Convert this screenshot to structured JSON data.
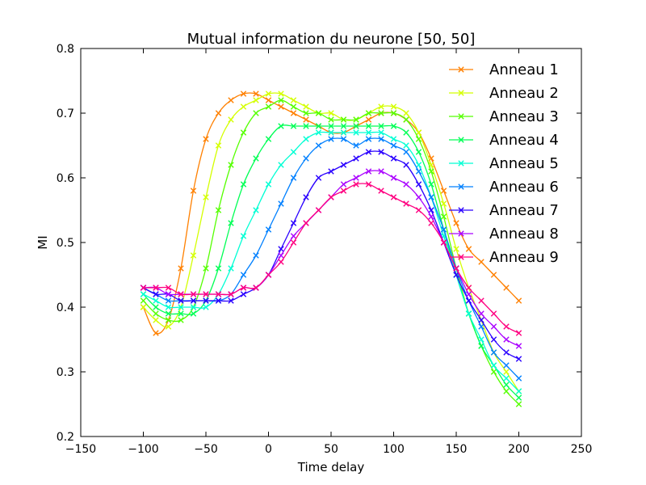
{
  "chart_data": {
    "type": "line",
    "title": "Mutual information du neurone [50, 50]",
    "xlabel": "Time delay",
    "ylabel": "MI",
    "xlim": [
      -150,
      250
    ],
    "ylim": [
      0.2,
      0.8
    ],
    "xticks": [
      -150,
      -100,
      -50,
      0,
      50,
      100,
      150,
      200,
      250
    ],
    "yticks": [
      0.2,
      0.3,
      0.4,
      0.5,
      0.6,
      0.7,
      0.8
    ],
    "xtick_labels": [
      "−150",
      "−100",
      "−50",
      "0",
      "50",
      "100",
      "150",
      "200",
      "250"
    ],
    "ytick_labels": [
      "0.2",
      "0.3",
      "0.4",
      "0.5",
      "0.6",
      "0.7",
      "0.8"
    ],
    "grid": false,
    "legend_position": "top-right",
    "marker": "x",
    "series": [
      {
        "name": "Anneau 1",
        "color": "#ff8000",
        "x": [
          -100,
          -90,
          -80,
          -70,
          -60,
          -50,
          -40,
          -30,
          -20,
          -10,
          0,
          10,
          20,
          30,
          40,
          50,
          60,
          70,
          80,
          90,
          100,
          110,
          120,
          130,
          140,
          150,
          160,
          170,
          180,
          190,
          200
        ],
        "y": [
          0.4,
          0.36,
          0.38,
          0.46,
          0.58,
          0.66,
          0.7,
          0.72,
          0.73,
          0.73,
          0.72,
          0.71,
          0.7,
          0.69,
          0.68,
          0.67,
          0.67,
          0.68,
          0.69,
          0.7,
          0.7,
          0.69,
          0.67,
          0.63,
          0.58,
          0.53,
          0.49,
          0.47,
          0.45,
          0.43,
          0.41
        ]
      },
      {
        "name": "Anneau 2",
        "color": "#d4ff00",
        "x": [
          -100,
          -90,
          -80,
          -70,
          -60,
          -50,
          -40,
          -30,
          -20,
          -10,
          0,
          10,
          20,
          30,
          40,
          50,
          60,
          70,
          80,
          90,
          100,
          110,
          120,
          130,
          140,
          150,
          160,
          170,
          180,
          190,
          200
        ],
        "y": [
          0.4,
          0.38,
          0.37,
          0.4,
          0.48,
          0.57,
          0.65,
          0.69,
          0.71,
          0.72,
          0.73,
          0.73,
          0.72,
          0.71,
          0.7,
          0.7,
          0.69,
          0.69,
          0.7,
          0.71,
          0.71,
          0.7,
          0.67,
          0.62,
          0.56,
          0.49,
          0.43,
          0.38,
          0.33,
          0.3,
          0.27
        ]
      },
      {
        "name": "Anneau 3",
        "color": "#55ff00",
        "x": [
          -100,
          -90,
          -80,
          -70,
          -60,
          -50,
          -40,
          -30,
          -20,
          -10,
          0,
          10,
          20,
          30,
          40,
          50,
          60,
          70,
          80,
          90,
          100,
          110,
          120,
          130,
          140,
          150,
          160,
          170,
          180,
          190,
          200
        ],
        "y": [
          0.41,
          0.39,
          0.38,
          0.38,
          0.4,
          0.46,
          0.55,
          0.62,
          0.67,
          0.7,
          0.71,
          0.72,
          0.71,
          0.7,
          0.7,
          0.69,
          0.69,
          0.69,
          0.7,
          0.7,
          0.7,
          0.69,
          0.66,
          0.61,
          0.54,
          0.46,
          0.39,
          0.34,
          0.3,
          0.27,
          0.25
        ]
      },
      {
        "name": "Anneau 4",
        "color": "#00ff55",
        "x": [
          -100,
          -90,
          -80,
          -70,
          -60,
          -50,
          -40,
          -30,
          -20,
          -10,
          0,
          10,
          20,
          30,
          40,
          50,
          60,
          70,
          80,
          90,
          100,
          110,
          120,
          130,
          140,
          150,
          160,
          170,
          180,
          190,
          200
        ],
        "y": [
          0.42,
          0.4,
          0.39,
          0.39,
          0.39,
          0.41,
          0.46,
          0.53,
          0.59,
          0.63,
          0.66,
          0.68,
          0.68,
          0.68,
          0.68,
          0.68,
          0.68,
          0.68,
          0.68,
          0.68,
          0.68,
          0.67,
          0.64,
          0.59,
          0.52,
          0.45,
          0.39,
          0.34,
          0.31,
          0.28,
          0.26
        ]
      },
      {
        "name": "Anneau 5",
        "color": "#00ffd4",
        "x": [
          -100,
          -90,
          -80,
          -70,
          -60,
          -50,
          -40,
          -30,
          -20,
          -10,
          0,
          10,
          20,
          30,
          40,
          50,
          60,
          70,
          80,
          90,
          100,
          110,
          120,
          130,
          140,
          150,
          160,
          170,
          180,
          190,
          200
        ],
        "y": [
          0.42,
          0.41,
          0.4,
          0.4,
          0.4,
          0.4,
          0.42,
          0.46,
          0.51,
          0.55,
          0.59,
          0.62,
          0.64,
          0.66,
          0.67,
          0.67,
          0.67,
          0.67,
          0.67,
          0.67,
          0.66,
          0.65,
          0.62,
          0.57,
          0.51,
          0.45,
          0.39,
          0.35,
          0.31,
          0.29,
          0.27
        ]
      },
      {
        "name": "Anneau 6",
        "color": "#0080ff",
        "x": [
          -100,
          -90,
          -80,
          -70,
          -60,
          -50,
          -40,
          -30,
          -20,
          -10,
          0,
          10,
          20,
          30,
          40,
          50,
          60,
          70,
          80,
          90,
          100,
          110,
          120,
          130,
          140,
          150,
          160,
          170,
          180,
          190,
          200
        ],
        "y": [
          0.43,
          0.42,
          0.41,
          0.41,
          0.41,
          0.41,
          0.41,
          0.42,
          0.45,
          0.48,
          0.52,
          0.56,
          0.6,
          0.63,
          0.65,
          0.66,
          0.66,
          0.65,
          0.66,
          0.66,
          0.65,
          0.64,
          0.61,
          0.57,
          0.52,
          0.46,
          0.41,
          0.37,
          0.33,
          0.31,
          0.29
        ]
      },
      {
        "name": "Anneau 7",
        "color": "#2a00ff",
        "x": [
          -100,
          -90,
          -80,
          -70,
          -60,
          -50,
          -40,
          -30,
          -20,
          -10,
          0,
          10,
          20,
          30,
          40,
          50,
          60,
          70,
          80,
          90,
          100,
          110,
          120,
          130,
          140,
          150,
          160,
          170,
          180,
          190,
          200
        ],
        "y": [
          0.43,
          0.42,
          0.42,
          0.41,
          0.41,
          0.41,
          0.41,
          0.41,
          0.42,
          0.43,
          0.45,
          0.49,
          0.53,
          0.57,
          0.6,
          0.61,
          0.62,
          0.63,
          0.64,
          0.64,
          0.63,
          0.62,
          0.59,
          0.55,
          0.5,
          0.45,
          0.41,
          0.38,
          0.35,
          0.33,
          0.32
        ]
      },
      {
        "name": "Anneau 8",
        "color": "#aa00ff",
        "x": [
          -100,
          -90,
          -80,
          -70,
          -60,
          -50,
          -40,
          -30,
          -20,
          -10,
          0,
          10,
          20,
          30,
          40,
          50,
          60,
          70,
          80,
          90,
          100,
          110,
          120,
          130,
          140,
          150,
          160,
          170,
          180,
          190,
          200
        ],
        "y": [
          0.43,
          0.43,
          0.42,
          0.42,
          0.42,
          0.42,
          0.42,
          0.42,
          0.43,
          0.43,
          0.45,
          0.48,
          0.51,
          0.53,
          0.55,
          0.57,
          0.59,
          0.6,
          0.61,
          0.61,
          0.6,
          0.59,
          0.57,
          0.54,
          0.5,
          0.46,
          0.42,
          0.39,
          0.37,
          0.35,
          0.34
        ]
      },
      {
        "name": "Anneau 9",
        "color": "#ff0080",
        "x": [
          -100,
          -90,
          -80,
          -70,
          -60,
          -50,
          -40,
          -30,
          -20,
          -10,
          0,
          10,
          20,
          30,
          40,
          50,
          60,
          70,
          80,
          90,
          100,
          110,
          120,
          130,
          140,
          150,
          160,
          170,
          180,
          190,
          200
        ],
        "y": [
          0.43,
          0.43,
          0.43,
          0.42,
          0.42,
          0.42,
          0.42,
          0.42,
          0.43,
          0.43,
          0.45,
          0.47,
          0.5,
          0.53,
          0.55,
          0.57,
          0.58,
          0.59,
          0.59,
          0.58,
          0.57,
          0.56,
          0.55,
          0.53,
          0.5,
          0.46,
          0.43,
          0.41,
          0.39,
          0.37,
          0.36
        ]
      }
    ]
  }
}
